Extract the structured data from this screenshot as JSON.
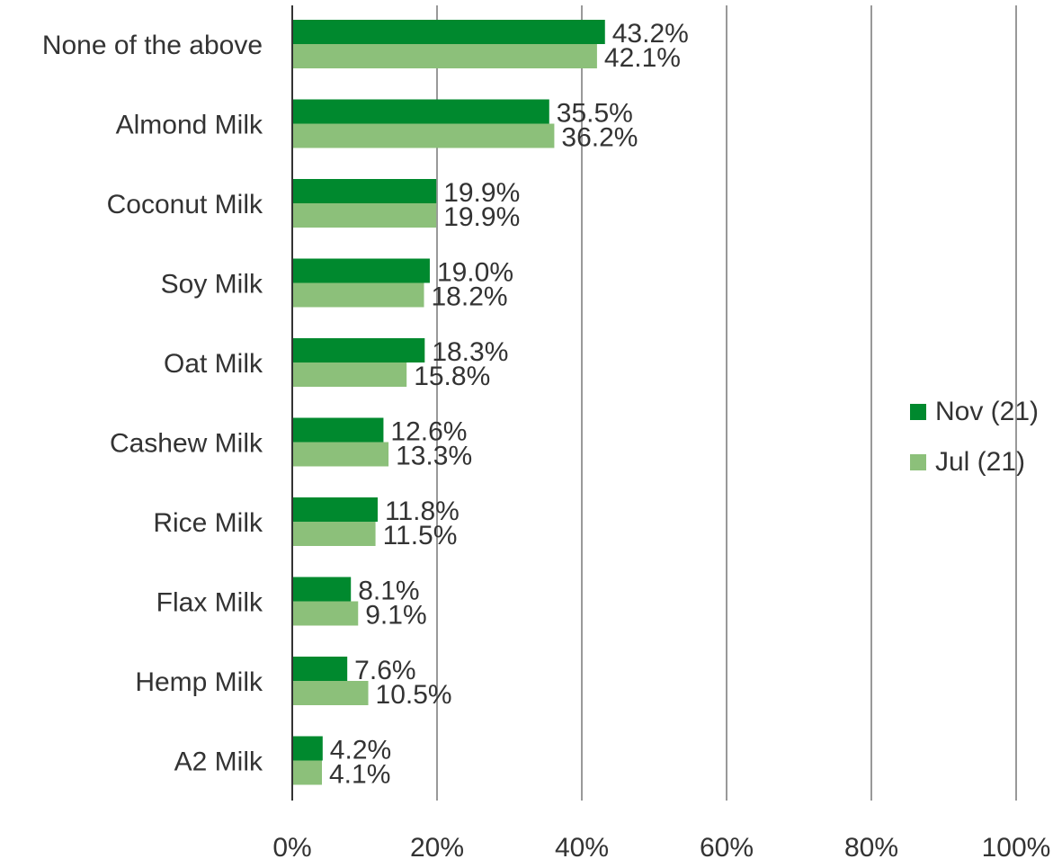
{
  "chart_data": {
    "type": "bar",
    "orientation": "horizontal",
    "categories": [
      "None of the above",
      "Almond Milk",
      "Coconut Milk",
      "Soy Milk",
      "Oat Milk",
      "Cashew Milk",
      "Rice Milk",
      "Flax Milk",
      "Hemp Milk",
      "A2 Milk"
    ],
    "series": [
      {
        "name": "Nov (21)",
        "color": "#00892e",
        "values": [
          43.2,
          35.5,
          19.9,
          19.0,
          18.3,
          12.6,
          11.8,
          8.1,
          7.6,
          4.2
        ],
        "labels": [
          "43.2%",
          "35.5%",
          "19.9%",
          "19.0%",
          "18.3%",
          "12.6%",
          "11.8%",
          "8.1%",
          "7.6%",
          "4.2%"
        ]
      },
      {
        "name": "Jul (21)",
        "color": "#8cc07a",
        "values": [
          42.1,
          36.2,
          19.9,
          18.2,
          15.8,
          13.3,
          11.5,
          9.1,
          10.5,
          4.1
        ],
        "labels": [
          "42.1%",
          "36.2%",
          "19.9%",
          "18.2%",
          "15.8%",
          "13.3%",
          "11.5%",
          "9.1%",
          "10.5%",
          "4.1%"
        ]
      }
    ],
    "xlim": [
      0,
      100
    ],
    "xticks": [
      "0%",
      "20%",
      "40%",
      "60%",
      "80%",
      "100%"
    ],
    "grid": true,
    "legend_position": "right",
    "title": "",
    "xlabel": "",
    "ylabel": ""
  }
}
